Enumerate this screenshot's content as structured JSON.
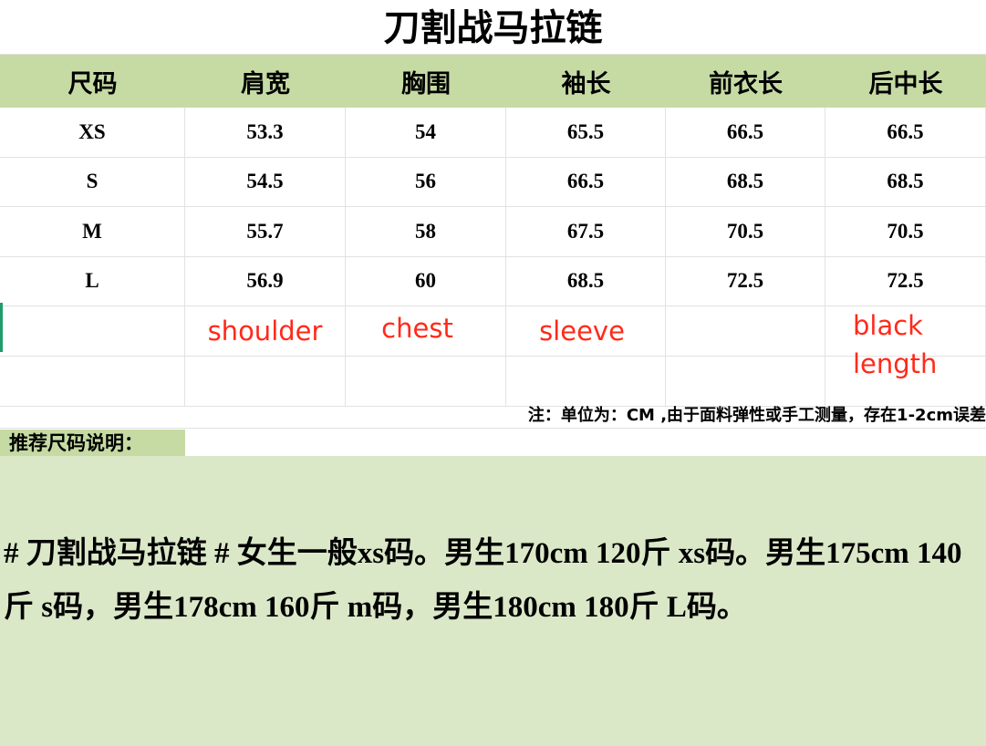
{
  "title": "刀割战马拉链",
  "headers": [
    "尺码",
    "肩宽",
    "胸围",
    "袖长",
    "前衣长",
    "后中长"
  ],
  "rows": [
    [
      "XS",
      "53.3",
      "54",
      "65.5",
      "66.5",
      "66.5"
    ],
    [
      "S",
      "54.5",
      "56",
      "66.5",
      "68.5",
      "68.5"
    ],
    [
      "M",
      "55.7",
      "58",
      "67.5",
      "70.5",
      "70.5"
    ],
    [
      "L",
      "56.9",
      "60",
      "68.5",
      "72.5",
      "72.5"
    ]
  ],
  "annotations": {
    "shoulder": "shoulder",
    "chest": "chest",
    "sleeve": "sleeve",
    "back_length": "black length"
  },
  "note": "注：单位为：CM ,由于面料弹性或手工测量，存在1-2cm误差",
  "recommend_label": "推荐尺码说明：",
  "recommend_text": "# 刀割战马拉链 # 女生一般xs码。男生170cm 120斤 xs码。男生175cm 140斤 s码，男生178cm 160斤 m码，男生180cm 180斤 L码。",
  "colors": {
    "header_bg": "#c6dba4",
    "text_block_bg": "#dbe8c8",
    "annotation": "#ff2a1a"
  }
}
